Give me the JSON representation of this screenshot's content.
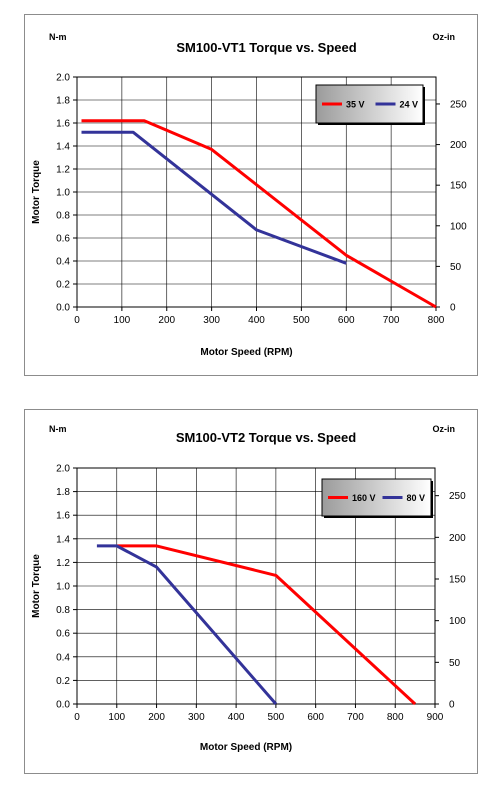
{
  "chart_data": [
    {
      "type": "line",
      "title": "SM100-VT1 Torque vs. Speed",
      "xlabel": "Motor Speed (RPM)",
      "ylabel": "Motor Torque",
      "y_unit_left": "N-m",
      "y_unit_right": "Oz-in",
      "xlim": [
        0,
        800
      ],
      "ylim": [
        0,
        2.0
      ],
      "x_ticks": [
        "0",
        "100",
        "200",
        "300",
        "400",
        "500",
        "600",
        "700",
        "800"
      ],
      "y_ticks": [
        "0.0",
        "0.2",
        "0.4",
        "0.6",
        "0.8",
        "1.0",
        "1.2",
        "1.4",
        "1.6",
        "1.8",
        "2.0"
      ],
      "y2_ticks": [
        "0",
        "50",
        "100",
        "150",
        "200",
        "250"
      ],
      "y2_max": 283.2,
      "grid": true,
      "legend_position": "top-right",
      "series": [
        {
          "name": "35 V",
          "color": "#ff0000",
          "x": [
            10,
            150,
            300,
            600,
            800
          ],
          "y": [
            1.62,
            1.62,
            1.37,
            0.45,
            0.0
          ]
        },
        {
          "name": "24 V",
          "color": "#333399",
          "x": [
            10,
            125,
            400,
            600
          ],
          "y": [
            1.52,
            1.52,
            0.67,
            0.38
          ]
        }
      ]
    },
    {
      "type": "line",
      "title": "SM100-VT2 Torque vs. Speed",
      "xlabel": "Motor Speed (RPM)",
      "ylabel": "Motor Torque",
      "y_unit_left": "N-m",
      "y_unit_right": "Oz-in",
      "xlim": [
        0,
        900
      ],
      "ylim": [
        0,
        2.0
      ],
      "x_ticks": [
        "0",
        "100",
        "200",
        "300",
        "400",
        "500",
        "600",
        "700",
        "800",
        "900"
      ],
      "y_ticks": [
        "0.0",
        "0.2",
        "0.4",
        "0.6",
        "0.8",
        "1.0",
        "1.2",
        "1.4",
        "1.6",
        "1.8",
        "2.0"
      ],
      "y2_ticks": [
        "0",
        "50",
        "100",
        "150",
        "200",
        "250"
      ],
      "y2_max": 283.2,
      "grid": true,
      "legend_position": "top-right",
      "series": [
        {
          "name": "160 V",
          "color": "#ff0000",
          "x": [
            100,
            200,
            500,
            850
          ],
          "y": [
            1.34,
            1.34,
            1.09,
            0.0
          ]
        },
        {
          "name": "80 V",
          "color": "#333399",
          "x": [
            50,
            100,
            200,
            500
          ],
          "y": [
            1.34,
            1.34,
            1.16,
            0.0
          ]
        }
      ]
    }
  ]
}
